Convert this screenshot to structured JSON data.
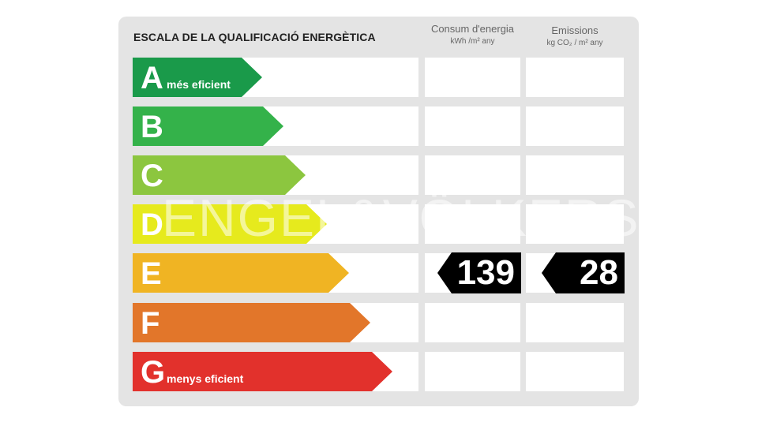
{
  "title": "ESCALA DE LA QUALIFICACIÓ ENERGÈTICA",
  "columns": {
    "consumption": {
      "label": "Consum d'energia",
      "unit": "kWh /m² any"
    },
    "emissions": {
      "label": "Emissions",
      "unit": "kg CO₂ / m² any"
    }
  },
  "ratings": [
    {
      "letter": "A",
      "sub": "més eficient",
      "color": "#1a9a4a"
    },
    {
      "letter": "B",
      "sub": "",
      "color": "#34b24a"
    },
    {
      "letter": "C",
      "sub": "",
      "color": "#8cc63f"
    },
    {
      "letter": "D",
      "sub": "",
      "color": "#e6ea1d"
    },
    {
      "letter": "E",
      "sub": "",
      "color": "#f0b423"
    },
    {
      "letter": "F",
      "sub": "",
      "color": "#e2762a"
    },
    {
      "letter": "G",
      "sub": "menys eficient",
      "color": "#e2312c"
    }
  ],
  "result": {
    "rating": "E",
    "consumption": "139",
    "emissions": "28"
  },
  "watermark": "ENGEL&VÖLKERS"
}
